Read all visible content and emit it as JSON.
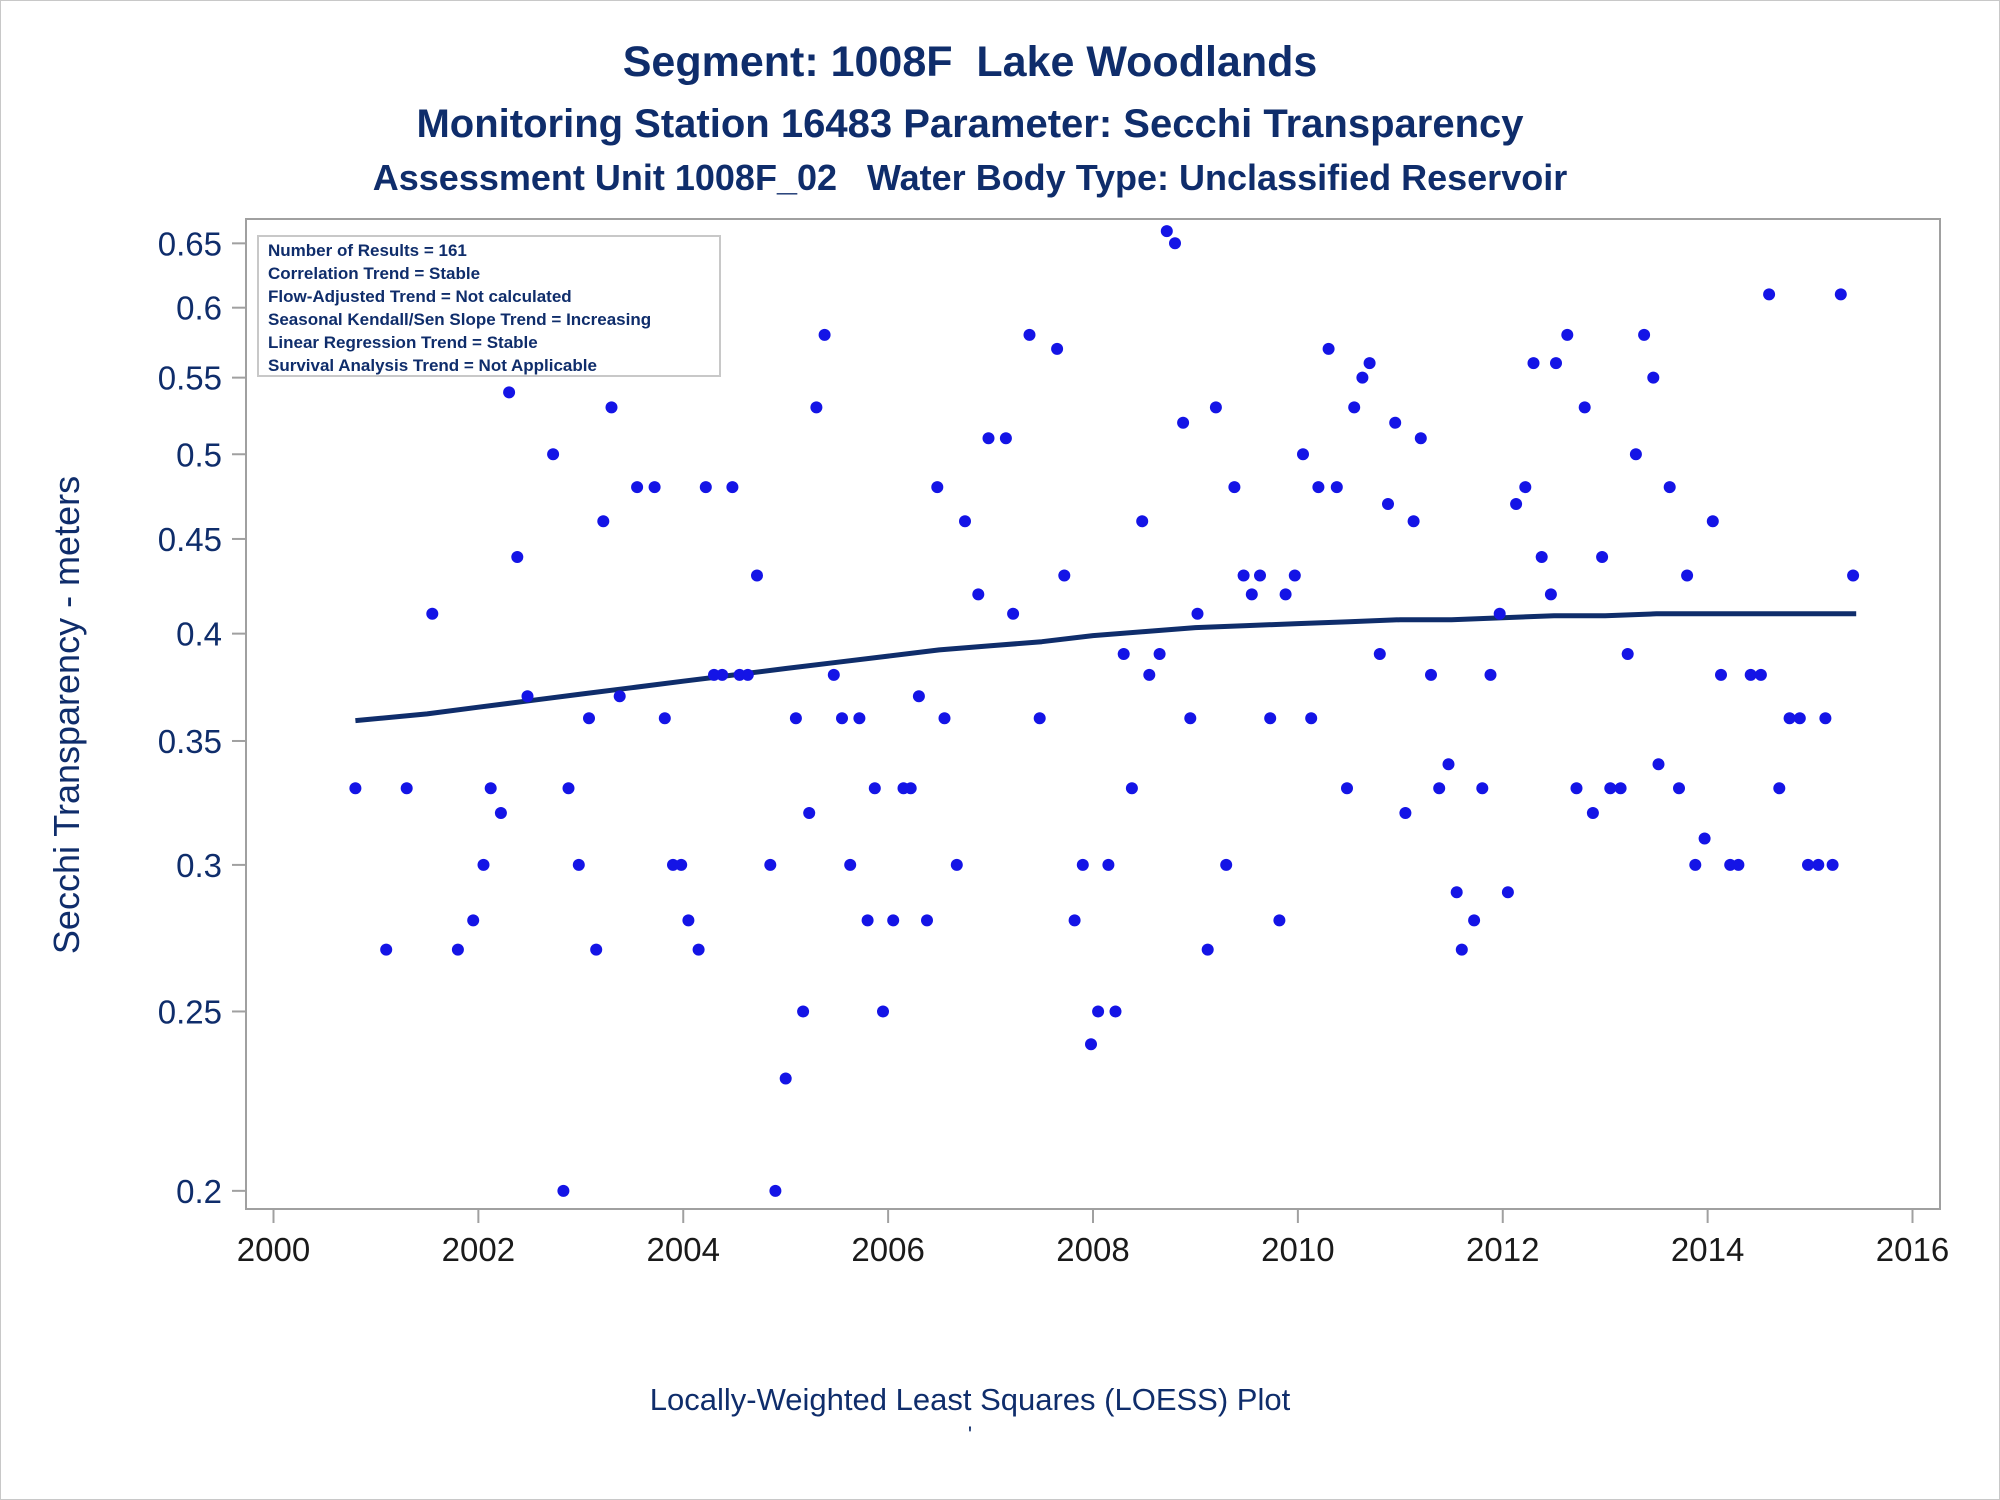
{
  "titles": {
    "line1": "Segment: 1008F  Lake Woodlands",
    "line2": "Monitoring Station 16483 Parameter: Secchi Transparency",
    "line3": "Assessment Unit 1008F_02   Water Body Type: Unclassified Reservoir"
  },
  "footnote": "Locally-Weighted Least Squares (LOESS) Plot",
  "footnote_mark": "'",
  "colors": {
    "text": "#0f2d6b",
    "points": "#1414e6",
    "loess": "#0f2d6b",
    "frame": "#a0a0a0"
  },
  "chart_data": {
    "type": "scatter",
    "ylabel": "Secchi Transparency - meters",
    "xlabel": "",
    "y_scale": "log",
    "ylim": [
      0.197,
      0.665
    ],
    "xlim": [
      1999.8,
      2016.2
    ],
    "y_ticks": [
      0.2,
      0.25,
      0.3,
      0.35,
      0.4,
      0.45,
      0.5,
      0.55,
      0.6,
      0.65
    ],
    "y_tick_labels": [
      "0.2",
      "0.25",
      "0.3",
      "0.35",
      "0.4",
      "0.45",
      "0.5",
      "0.55",
      "0.6",
      "0.65"
    ],
    "x_ticks": [
      2000,
      2002,
      2004,
      2006,
      2008,
      2010,
      2012,
      2014,
      2016
    ],
    "x_tick_labels": [
      "2000",
      "2002",
      "2004",
      "2006",
      "2008",
      "2010",
      "2012",
      "2014",
      "2016"
    ],
    "grid": false,
    "legend_placement": "top-left",
    "stats_box": [
      "Number of Results = 161",
      "Correlation Trend = Stable",
      "Flow-Adjusted Trend = Not calculated",
      "Seasonal Kendall/Sen Slope Trend = Increasing",
      "Linear Regression Trend = Stable",
      "Survival Analysis Trend = Not Applicable"
    ],
    "series": [
      {
        "kind": "points",
        "x": [
          2000.8,
          2001.1,
          2001.3,
          2001.55,
          2001.8,
          2001.95,
          2002.05,
          2002.12,
          2002.22,
          2002.3,
          2002.38,
          2002.48,
          2002.55,
          2002.73,
          2002.83,
          2002.88,
          2002.98,
          2003.08,
          2003.15,
          2003.22,
          2003.3,
          2003.38,
          2003.47,
          2003.55,
          2003.65,
          2003.72,
          2003.82,
          2003.9,
          2003.98,
          2004.05,
          2004.15,
          2004.22,
          2004.3,
          2004.38,
          2004.48,
          2004.55,
          2004.63,
          2004.72,
          2004.85,
          2004.9,
          2005.0,
          2005.1,
          2005.17,
          2005.23,
          2005.3,
          2005.38,
          2005.47,
          2005.55,
          2005.63,
          2005.72,
          2005.8,
          2005.87,
          2005.95,
          2006.05,
          2006.15,
          2006.22,
          2006.3,
          2006.38,
          2006.48,
          2006.55,
          2006.67,
          2006.75,
          2006.88,
          2006.98,
          2007.15,
          2007.22,
          2007.38,
          2007.48,
          2007.65,
          2007.72,
          2007.82,
          2007.9,
          2007.98,
          2008.05,
          2008.15,
          2008.22,
          2008.3,
          2008.38,
          2008.48,
          2008.55,
          2008.65,
          2008.72,
          2008.8,
          2008.88,
          2008.95,
          2009.02,
          2009.12,
          2009.2,
          2009.3,
          2009.38,
          2009.47,
          2009.55,
          2009.63,
          2009.73,
          2009.82,
          2009.88,
          2009.97,
          2010.05,
          2010.13,
          2010.2,
          2010.3,
          2010.38,
          2010.48,
          2010.55,
          2010.63,
          2010.7,
          2010.8,
          2010.88,
          2010.95,
          2011.05,
          2011.13,
          2011.2,
          2011.3,
          2011.38,
          2011.47,
          2011.55,
          2011.6,
          2011.72,
          2011.8,
          2011.88,
          2011.97,
          2012.05,
          2012.13,
          2012.22,
          2012.3,
          2012.38,
          2012.47,
          2012.52,
          2012.63,
          2012.72,
          2012.8,
          2012.88,
          2012.97,
          2013.05,
          2013.15,
          2013.22,
          2013.3,
          2013.38,
          2013.47,
          2013.52,
          2013.63,
          2013.72,
          2013.8,
          2013.88,
          2013.97,
          2014.05,
          2014.13,
          2014.22,
          2014.3,
          2014.42,
          2014.52,
          2014.6,
          2014.7,
          2014.8,
          2014.9,
          2014.98,
          2015.08,
          2015.15,
          2015.22,
          2015.3,
          2015.42
        ],
        "y": [
          0.33,
          0.27,
          0.33,
          0.41,
          0.27,
          0.28,
          0.3,
          0.33,
          0.32,
          0.54,
          0.44,
          0.37,
          0.6,
          0.5,
          0.2,
          0.33,
          0.3,
          0.36,
          0.27,
          0.46,
          0.53,
          0.37,
          0.65,
          0.48,
          0.6,
          0.48,
          0.36,
          0.3,
          0.3,
          0.28,
          0.27,
          0.48,
          0.38,
          0.38,
          0.48,
          0.38,
          0.38,
          0.43,
          0.3,
          0.2,
          0.23,
          0.36,
          0.25,
          0.32,
          0.53,
          0.58,
          0.38,
          0.36,
          0.3,
          0.36,
          0.28,
          0.33,
          0.25,
          0.28,
          0.33,
          0.33,
          0.37,
          0.28,
          0.48,
          0.36,
          0.3,
          0.46,
          0.42,
          0.51,
          0.51,
          0.41,
          0.58,
          0.36,
          0.57,
          0.43,
          0.28,
          0.3,
          0.24,
          0.25,
          0.3,
          0.25,
          0.39,
          0.33,
          0.46,
          0.38,
          0.39,
          0.66,
          0.65,
          0.52,
          0.36,
          0.41,
          0.27,
          0.53,
          0.3,
          0.48,
          0.43,
          0.42,
          0.43,
          0.36,
          0.28,
          0.42,
          0.43,
          0.5,
          0.36,
          0.48,
          0.57,
          0.48,
          0.33,
          0.53,
          0.55,
          0.56,
          0.39,
          0.47,
          0.52,
          0.32,
          0.46,
          0.51,
          0.38,
          0.33,
          0.34,
          0.29,
          0.27,
          0.28,
          0.33,
          0.38,
          0.41,
          0.29,
          0.47,
          0.48,
          0.56,
          0.44,
          0.42,
          0.56,
          0.58,
          0.33,
          0.53,
          0.32,
          0.44,
          0.33,
          0.33,
          0.39,
          0.5,
          0.58,
          0.55,
          0.34,
          0.48,
          0.33,
          0.43,
          0.3,
          0.31,
          0.46,
          0.38,
          0.3,
          0.3,
          0.38,
          0.38,
          0.61,
          0.33,
          0.36,
          0.36,
          0.3,
          0.3,
          0.36,
          0.3,
          0.61,
          0.43
        ]
      },
      {
        "kind": "loess_line",
        "x": [
          2000.8,
          2001.5,
          2002.0,
          2002.5,
          2003.0,
          2003.5,
          2004.0,
          2004.5,
          2005.0,
          2005.5,
          2006.0,
          2006.5,
          2007.0,
          2007.5,
          2008.0,
          2008.5,
          2009.0,
          2009.5,
          2010.0,
          2010.5,
          2011.0,
          2011.5,
          2012.0,
          2012.5,
          2013.0,
          2013.5,
          2014.0,
          2014.5,
          2015.0,
          2015.45
        ],
        "y": [
          0.359,
          0.362,
          0.365,
          0.368,
          0.371,
          0.374,
          0.377,
          0.38,
          0.383,
          0.386,
          0.389,
          0.392,
          0.394,
          0.396,
          0.399,
          0.401,
          0.403,
          0.404,
          0.405,
          0.406,
          0.407,
          0.407,
          0.408,
          0.409,
          0.409,
          0.41,
          0.41,
          0.41,
          0.41,
          0.41
        ]
      }
    ]
  }
}
